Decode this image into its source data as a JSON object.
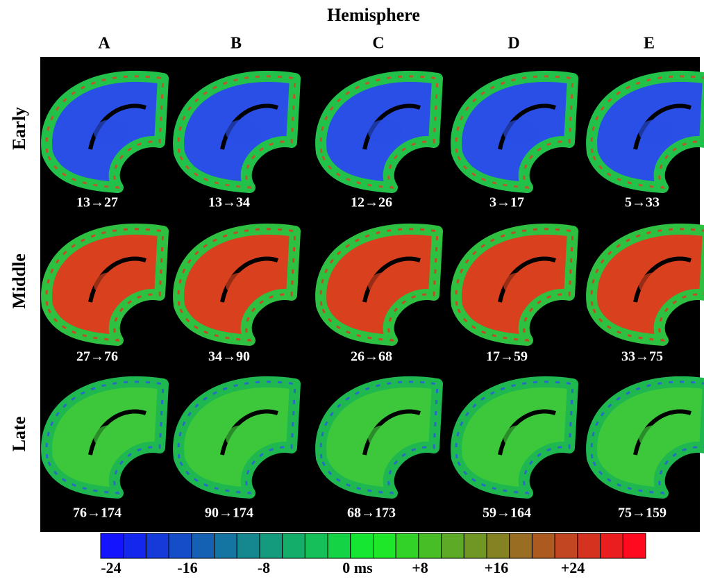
{
  "title": "Hemisphere",
  "columns": [
    "A",
    "B",
    "C",
    "D",
    "E"
  ],
  "rows": [
    {
      "label": "Early",
      "ranges": [
        "13→27",
        "13→34",
        "12→26",
        "3→17",
        "5→33"
      ]
    },
    {
      "label": "Middle",
      "ranges": [
        "27→76",
        "34→90",
        "26→68",
        "17→59",
        "33→75"
      ]
    },
    {
      "label": "Late",
      "ranges": [
        "76→174",
        "90→174",
        "68→173",
        "59→164",
        "75→159"
      ]
    }
  ],
  "colorbar": {
    "ticks": [
      "-24",
      "-16",
      "-8",
      "0 ms",
      "+8",
      "+16",
      "+24"
    ]
  }
}
